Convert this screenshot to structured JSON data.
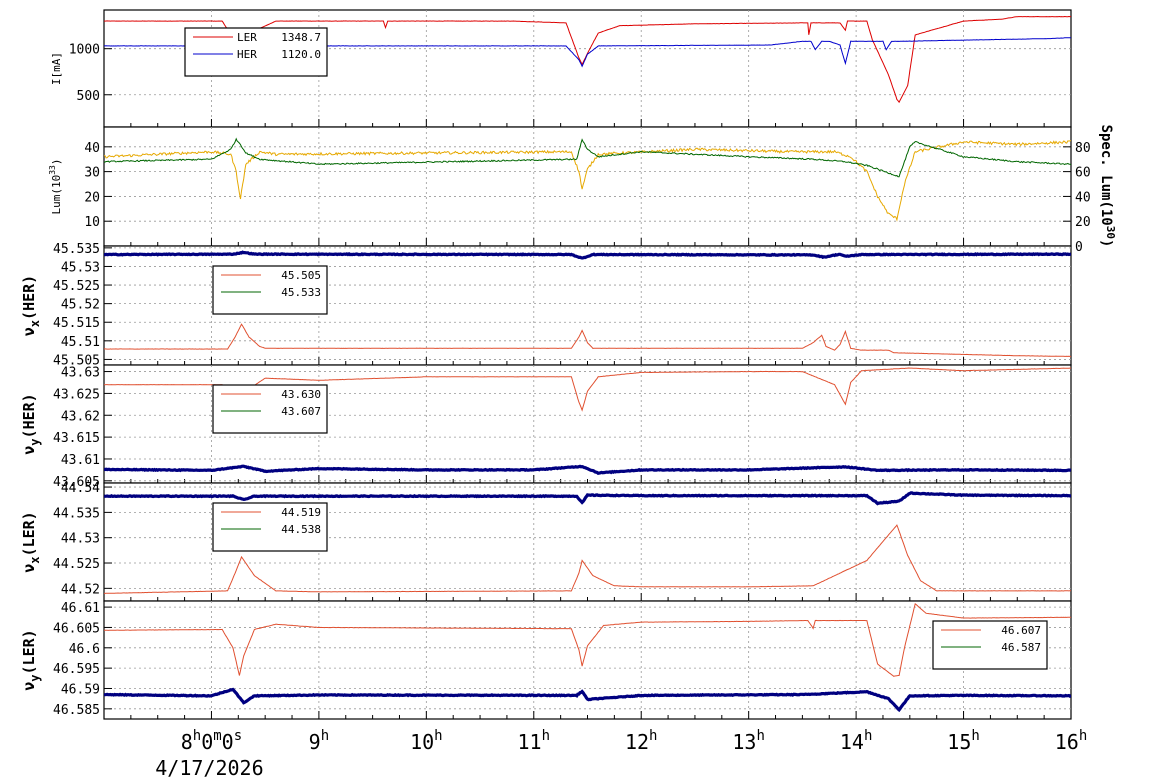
{
  "date_label": "4/17/2026",
  "x_axis": {
    "start_hour": 7.0,
    "end_hour": 16.0,
    "tick_hours": [
      8,
      9,
      10,
      11,
      12,
      13,
      14,
      15,
      16
    ],
    "tick_labels": [
      {
        "main": "8",
        "sup": "h",
        "rest": "0",
        "sup2": "m",
        "rest2": "0",
        "sup3": "s"
      },
      {
        "main": "9",
        "sup": "h"
      },
      {
        "main": "10",
        "sup": "h"
      },
      {
        "main": "11",
        "sup": "h"
      },
      {
        "main": "12",
        "sup": "h"
      },
      {
        "main": "13",
        "sup": "h"
      },
      {
        "main": "14",
        "sup": "h"
      },
      {
        "main": "15",
        "sup": "h"
      },
      {
        "main": "16",
        "sup": "h"
      }
    ]
  },
  "chart_data": [
    {
      "type": "line",
      "ylabel": "I[mA]",
      "ylim": [
        150,
        1420
      ],
      "yticks": [
        500,
        1000
      ],
      "legend": {
        "position": "top-left",
        "entries": [
          {
            "label": "LER",
            "value": "1348.7",
            "color": "#dd0000"
          },
          {
            "label": "HER",
            "value": "1120.0",
            "color": "#0000cc"
          }
        ]
      },
      "series": [
        {
          "name": "LER",
          "color": "#dd0000",
          "x": [
            7.0,
            8.1,
            8.22,
            8.3,
            8.36,
            8.45,
            8.6,
            9.6,
            9.62,
            9.64,
            10.8,
            11.3,
            11.42,
            11.45,
            11.5,
            11.6,
            11.8,
            12.5,
            13.5,
            13.55,
            13.56,
            13.58,
            13.6,
            13.85,
            13.9,
            13.92,
            13.95,
            14.1,
            14.15,
            14.3,
            14.38,
            14.4,
            14.48,
            14.55,
            15.0,
            15.35,
            15.5,
            16.0
          ],
          "y": [
            1300,
            1300,
            1080,
            760,
            970,
            1220,
            1300,
            1300,
            1230,
            1300,
            1300,
            1280,
            900,
            830,
            950,
            1170,
            1250,
            1270,
            1280,
            1280,
            1150,
            1280,
            1280,
            1280,
            1200,
            1300,
            1300,
            1300,
            1100,
            720,
            450,
            420,
            600,
            1150,
            1300,
            1320,
            1348,
            1348
          ]
        },
        {
          "name": "HER",
          "color": "#0000cc",
          "x": [
            7.0,
            8.1,
            8.22,
            8.3,
            8.38,
            8.5,
            11.3,
            11.42,
            11.45,
            11.5,
            11.6,
            13.2,
            13.5,
            13.58,
            13.62,
            13.68,
            13.75,
            13.85,
            13.9,
            13.95,
            14.05,
            14.25,
            14.28,
            14.33,
            14.4,
            15.8,
            16.0
          ],
          "y": [
            1030,
            1030,
            900,
            760,
            930,
            1030,
            1030,
            880,
            810,
            940,
            1030,
            1040,
            1080,
            1080,
            990,
            1080,
            1080,
            1040,
            840,
            1080,
            1080,
            1080,
            990,
            1080,
            1080,
            1110,
            1120
          ]
        }
      ]
    },
    {
      "type": "line",
      "ylabel": "Lum(10^33)",
      "ylim": [
        0,
        48
      ],
      "yticks": [
        10,
        20,
        30,
        40
      ],
      "ylabel_right": "Spec. Lum(10^30)",
      "ylim_right": [
        0,
        96
      ],
      "yticks_right": [
        0,
        20,
        40,
        60,
        80
      ],
      "series": [
        {
          "name": "Lum",
          "color": "#e6a800",
          "x": [
            7.0,
            8.0,
            8.18,
            8.23,
            8.27,
            8.32,
            8.45,
            8.6,
            11.35,
            11.42,
            11.45,
            11.5,
            11.6,
            12.5,
            13.4,
            13.8,
            13.95,
            14.1,
            14.2,
            14.3,
            14.38,
            14.45,
            14.55,
            15.0,
            15.5,
            16.0
          ],
          "y": [
            36,
            38,
            37,
            30,
            19,
            33,
            38,
            37,
            38,
            30,
            23,
            31,
            37,
            39,
            38,
            38,
            36,
            30,
            20,
            13,
            11,
            25,
            38,
            42,
            41,
            42
          ]
        },
        {
          "name": "Spec. Lum",
          "color": "#006600",
          "axis": "right",
          "x": [
            7.0,
            8.0,
            8.18,
            8.23,
            8.27,
            8.32,
            8.45,
            9.0,
            11.4,
            11.45,
            11.5,
            11.6,
            12.0,
            12.5,
            13.0,
            13.6,
            13.9,
            14.1,
            14.4,
            14.5,
            14.55,
            15.0,
            15.5,
            16.0
          ],
          "y": [
            68,
            70,
            78,
            86,
            82,
            75,
            70,
            66,
            70,
            86,
            78,
            72,
            76,
            74,
            72,
            70,
            68,
            65,
            56,
            80,
            84,
            72,
            68,
            66
          ]
        }
      ]
    },
    {
      "type": "line",
      "ylabel": "νx(HER)",
      "ylim": [
        45.5035,
        45.5355
      ],
      "yticks": [
        45.505,
        45.51,
        45.515,
        45.52,
        45.525,
        45.53,
        45.535
      ],
      "tick_labels": [
        "45.505",
        "45.51",
        "45.515",
        "45.52",
        "45.525",
        "45.53",
        "45.535"
      ],
      "legend": {
        "position": "top-left",
        "entries": [
          {
            "label": "45.505",
            "color": "#e05030"
          },
          {
            "label": "45.533",
            "color": "#006600"
          }
        ]
      },
      "series": [
        {
          "name": "line1",
          "color": "#e05030",
          "x": [
            7.0,
            8.15,
            8.22,
            8.28,
            8.35,
            8.45,
            8.5,
            11.35,
            11.42,
            11.45,
            11.5,
            11.55,
            13.5,
            13.6,
            13.68,
            13.72,
            13.8,
            13.85,
            13.9,
            13.95,
            14.05,
            14.3,
            14.35,
            15.5,
            16.0
          ],
          "y": [
            45.5078,
            45.5078,
            45.511,
            45.5145,
            45.511,
            45.5085,
            45.508,
            45.508,
            45.511,
            45.5128,
            45.5095,
            45.508,
            45.508,
            45.5095,
            45.5115,
            45.5085,
            45.5075,
            45.509,
            45.5125,
            45.508,
            45.5075,
            45.5075,
            45.5068,
            45.506,
            45.5058
          ]
        },
        {
          "name": "line2",
          "color": "#000080",
          "thick": true,
          "x": [
            7.0,
            8.2,
            8.3,
            8.4,
            11.35,
            11.45,
            11.55,
            13.6,
            13.7,
            13.85,
            13.9,
            14.05,
            16.0
          ],
          "y": [
            45.5332,
            45.5333,
            45.5338,
            45.5333,
            45.5332,
            45.5322,
            45.5332,
            45.5331,
            45.5325,
            45.5333,
            45.5327,
            45.5332,
            45.5333
          ]
        }
      ]
    },
    {
      "type": "line",
      "ylabel": "νy(HER)",
      "ylim": [
        43.6045,
        43.6315
      ],
      "yticks": [
        43.605,
        43.61,
        43.615,
        43.62,
        43.625,
        43.63
      ],
      "tick_labels": [
        "43.605",
        "43.61",
        "43.615",
        "43.62",
        "43.625",
        "43.63"
      ],
      "legend": {
        "position": "top-left",
        "entries": [
          {
            "label": "43.630",
            "color": "#e05030"
          },
          {
            "label": "43.607",
            "color": "#006600"
          }
        ]
      },
      "series": [
        {
          "name": "line1",
          "color": "#e05030",
          "x": [
            7.0,
            8.1,
            8.2,
            8.28,
            8.35,
            8.5,
            9.0,
            10.0,
            11.35,
            11.42,
            11.45,
            11.5,
            11.6,
            12.0,
            13.0,
            13.5,
            13.8,
            13.9,
            13.95,
            14.05,
            14.5,
            15.0,
            16.0
          ],
          "y": [
            43.627,
            43.627,
            43.626,
            43.6205,
            43.626,
            43.6285,
            43.628,
            43.6288,
            43.6288,
            43.623,
            43.6212,
            43.6255,
            43.6288,
            43.6298,
            43.63,
            43.63,
            43.627,
            43.6225,
            43.6275,
            43.6302,
            43.6308,
            43.6302,
            43.6308
          ]
        },
        {
          "name": "line2",
          "color": "#000080",
          "thick": true,
          "x": [
            7.0,
            8.0,
            8.3,
            8.5,
            9.0,
            10.0,
            11.0,
            11.45,
            11.6,
            12.0,
            13.0,
            13.9,
            14.2,
            15.0,
            16.0
          ],
          "y": [
            43.6076,
            43.6074,
            43.6083,
            43.6072,
            43.6078,
            43.6075,
            43.6075,
            43.6083,
            43.6068,
            43.6075,
            43.6075,
            43.6082,
            43.6074,
            43.6075,
            43.6074
          ]
        }
      ]
    },
    {
      "type": "line",
      "ylabel": "νx(LER)",
      "ylim": [
        44.5175,
        44.5408
      ],
      "yticks": [
        44.52,
        44.525,
        44.53,
        44.535,
        44.54
      ],
      "tick_labels": [
        "44.52",
        "44.525",
        "44.53",
        "44.535",
        "44.54"
      ],
      "legend": {
        "position": "top-left",
        "entries": [
          {
            "label": "44.519",
            "color": "#e05030"
          },
          {
            "label": "44.538",
            "color": "#006600"
          }
        ]
      },
      "series": [
        {
          "name": "line1",
          "color": "#e05030",
          "x": [
            7.0,
            8.15,
            8.22,
            8.28,
            8.4,
            8.6,
            9.0,
            11.35,
            11.42,
            11.45,
            11.55,
            11.75,
            12.0,
            13.0,
            13.6,
            14.1,
            14.3,
            14.38,
            14.48,
            14.6,
            14.75,
            15.0,
            16.0
          ],
          "y": [
            44.519,
            44.5195,
            44.523,
            44.5262,
            44.5225,
            44.5195,
            44.5193,
            44.5195,
            44.523,
            44.5255,
            44.5225,
            44.5205,
            44.5203,
            44.5203,
            44.5205,
            44.5255,
            44.5305,
            44.5325,
            44.5265,
            44.5215,
            44.5195,
            44.5195,
            44.5195
          ]
        },
        {
          "name": "line2",
          "color": "#000080",
          "thick": true,
          "x": [
            7.0,
            8.2,
            8.3,
            8.4,
            11.4,
            11.45,
            11.5,
            12.0,
            13.0,
            14.1,
            14.2,
            14.4,
            14.5,
            15.0,
            16.0
          ],
          "y": [
            44.5382,
            44.5382,
            44.5375,
            44.5382,
            44.5382,
            44.5369,
            44.5384,
            44.5383,
            44.5383,
            44.5383,
            44.5368,
            44.5372,
            44.5388,
            44.5384,
            44.5383
          ]
        }
      ]
    },
    {
      "type": "line",
      "ylabel": "νy(LER)",
      "ylim": [
        46.5825,
        46.6115
      ],
      "yticks": [
        46.585,
        46.59,
        46.595,
        46.6,
        46.605,
        46.61
      ],
      "tick_labels": [
        "46.585",
        "46.59",
        "46.595",
        "46.6",
        "46.605",
        "46.61"
      ],
      "legend": {
        "position": "top-right",
        "entries": [
          {
            "label": "46.607",
            "color": "#e05030"
          },
          {
            "label": "46.587",
            "color": "#006600"
          }
        ]
      },
      "series": [
        {
          "name": "line1",
          "color": "#e05030",
          "x": [
            7.0,
            8.1,
            8.2,
            8.26,
            8.3,
            8.4,
            8.6,
            9.0,
            11.35,
            11.42,
            11.45,
            11.5,
            11.65,
            12.0,
            13.0,
            13.55,
            13.6,
            13.62,
            14.1,
            14.2,
            14.35,
            14.4,
            14.45,
            14.55,
            14.65,
            15.0,
            16.0
          ],
          "y": [
            46.6043,
            46.6045,
            46.6,
            46.5932,
            46.598,
            46.6045,
            46.6058,
            46.605,
            46.6047,
            46.5995,
            46.5955,
            46.6005,
            46.6055,
            46.6063,
            46.6065,
            46.6067,
            46.6048,
            46.6067,
            46.6067,
            46.596,
            46.593,
            46.5932,
            46.6,
            46.6108,
            46.6085,
            46.6073,
            46.6075
          ]
        },
        {
          "name": "line2",
          "color": "#000080",
          "thick": true,
          "x": [
            7.0,
            8.0,
            8.2,
            8.3,
            8.4,
            9.0,
            11.4,
            11.45,
            11.5,
            12.0,
            13.5,
            14.1,
            14.3,
            14.4,
            14.5,
            15.0,
            16.0
          ],
          "y": [
            46.5885,
            46.5882,
            46.5898,
            46.5865,
            46.5882,
            46.5884,
            46.5883,
            46.5893,
            46.5873,
            46.5883,
            46.5885,
            46.5892,
            46.5875,
            46.5848,
            46.5882,
            46.5883,
            46.5882
          ]
        }
      ]
    }
  ]
}
